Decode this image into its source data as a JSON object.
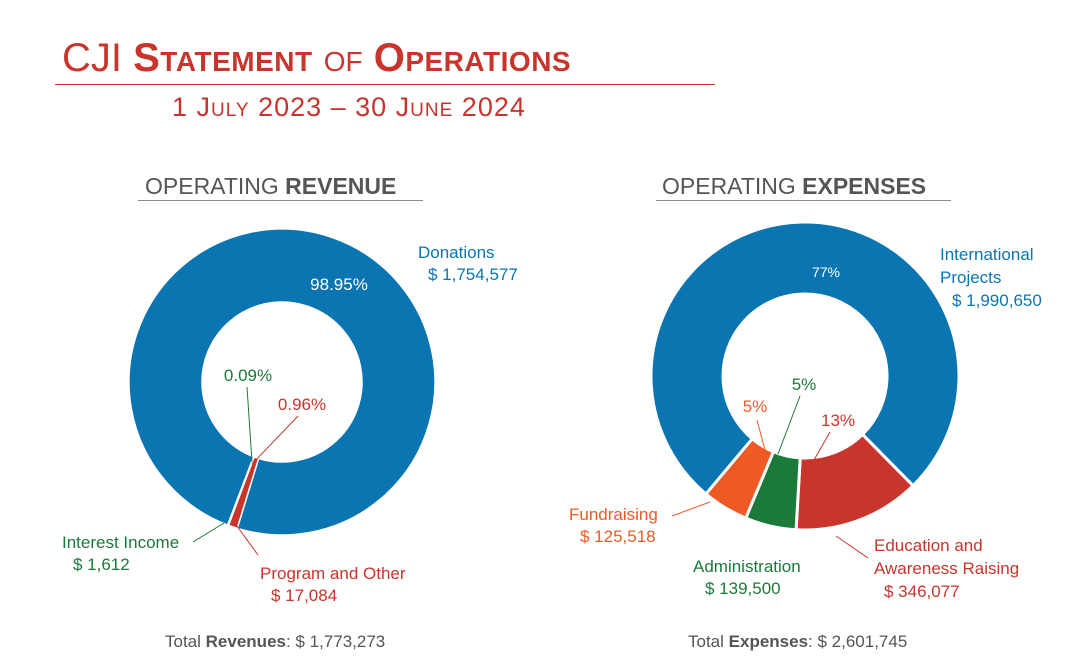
{
  "header": {
    "title_prefix": "CJI",
    "title_word1": "Statement",
    "title_of": "of",
    "title_word2": "Operations",
    "period": "1 July 2023 – 30 June 2024"
  },
  "revenue": {
    "heading_light": "OPERATING",
    "heading_bold": "REVENUE",
    "total_prefix": "Total",
    "total_label": "Revenues",
    "total_value": ": $ 1,773,273"
  },
  "expenses": {
    "heading_light": "OPERATING",
    "heading_bold": "EXPENSES",
    "total_prefix": "Total",
    "total_label": "Expenses",
    "total_value": ": $ 2,601,745"
  },
  "chart_data": [
    {
      "type": "pie",
      "title": "OPERATING REVENUE",
      "categories": [
        "Donations",
        "Program and Other",
        "Interest Income"
      ],
      "values": [
        1754577,
        17084,
        1612
      ],
      "value_labels": [
        "$ 1,754,577",
        "$ 17,084",
        "$ 1,612"
      ],
      "percent_labels": [
        "98.95%",
        "0.96%",
        "0.09%"
      ],
      "colors": [
        "#0a75b0",
        "#c8352c",
        "#1b7a3a"
      ]
    },
    {
      "type": "pie",
      "title": "OPERATING EXPENSES",
      "categories": [
        "International Projects",
        "Education and Awareness Raising",
        "Administration",
        "Fundraising"
      ],
      "values": [
        1990650,
        346077,
        139500,
        125518
      ],
      "value_labels": [
        "$ 1,990,650",
        "$ 346,077",
        "$ 139,500",
        "$ 125,518"
      ],
      "percent_labels": [
        "77%",
        "13%",
        "5%",
        "5%"
      ],
      "colors": [
        "#0a75b0",
        "#c8352c",
        "#1b7a3a",
        "#ee5a24"
      ]
    }
  ]
}
